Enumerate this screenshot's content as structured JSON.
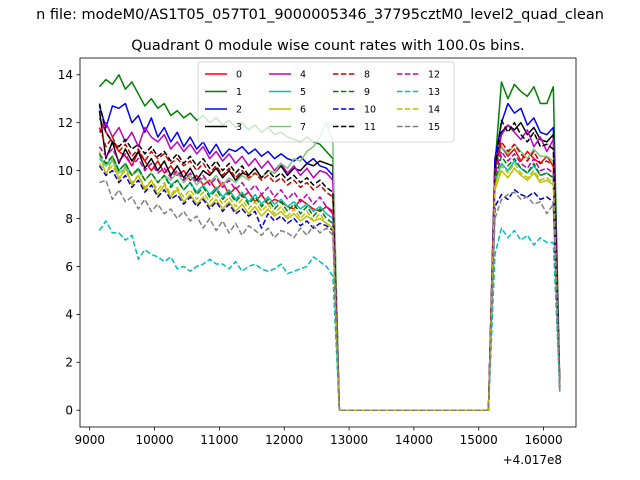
{
  "chart_data": {
    "type": "line",
    "suptitle": "n file: modeM0/AS1T05_057T01_9000005346_37795cztM0_level2_quad_clean",
    "title": "Quadrant 0 module wise count rates with 100.0s bins.",
    "xlabel": "",
    "ylabel": "",
    "x_offset_label": "+4.017e8",
    "xlim": [
      8850,
      16500
    ],
    "ylim": [
      -0.7,
      14.7
    ],
    "xticks": [
      9000,
      10000,
      11000,
      12000,
      13000,
      14000,
      15000,
      16000
    ],
    "yticks": [
      0,
      2,
      4,
      6,
      8,
      10,
      12,
      14
    ],
    "grid": false,
    "legend": {
      "placement": "upper-center",
      "columns": 4
    },
    "segments": [
      {
        "x_start": 9150,
        "x_end": 12750,
        "step": 100
      },
      {
        "x_start": 15250,
        "x_end": 16150,
        "step": 100
      }
    ],
    "gap_value": 0,
    "series": [
      {
        "name": "0",
        "color": "#ff0000",
        "dash": "solid",
        "values": [
          12.2,
          11.6,
          11.2,
          10.8,
          10.6,
          10.2,
          10.8,
          10.4,
          10.0,
          10.4,
          9.9,
          10.2,
          9.8,
          10.0,
          9.6,
          9.8,
          9.4,
          9.6,
          9.2,
          9.5,
          9.0,
          9.3,
          8.9,
          9.1,
          8.7,
          9.0,
          8.6,
          8.8,
          8.7,
          8.5,
          8.4,
          8.8,
          8.6,
          8.4,
          8.3,
          8.5,
          8.2
        ],
        "values2": [
          10.5,
          11.0,
          10.6,
          10.9,
          10.4,
          10.8,
          10.5,
          10.3,
          10.6,
          10.2
        ]
      },
      {
        "name": "1",
        "color": "#008000",
        "dash": "solid",
        "values": [
          13.5,
          13.8,
          13.6,
          14.0,
          13.4,
          13.7,
          13.2,
          12.7,
          13.0,
          12.6,
          12.8,
          12.3,
          12.5,
          12.2,
          12.4,
          12.1,
          12.3,
          12.0,
          12.2,
          11.9,
          12.1,
          11.8,
          12.0,
          11.7,
          11.9,
          11.6,
          11.8,
          11.5,
          11.6,
          11.4,
          11.3,
          11.2,
          11.4,
          11.2,
          11.1,
          10.8,
          10.5
        ],
        "values2": [
          10.2,
          13.7,
          13.0,
          13.6,
          13.3,
          13.1,
          13.5,
          12.8,
          12.8,
          13.5
        ]
      },
      {
        "name": "2",
        "color": "#0000ff",
        "dash": "solid",
        "values": [
          12.7,
          11.8,
          12.7,
          12.6,
          12.8,
          12.0,
          12.3,
          11.6,
          12.2,
          11.4,
          11.8,
          11.2,
          11.6,
          11.0,
          11.4,
          10.9,
          11.2,
          10.7,
          11.1,
          10.6,
          10.9,
          10.8,
          11.0,
          10.7,
          10.9,
          10.6,
          10.8,
          10.5,
          10.7,
          10.5,
          10.4,
          10.6,
          10.3,
          10.5,
          10.2,
          10.1,
          9.8
        ],
        "values2": [
          10.5,
          12.0,
          12.8,
          12.4,
          12.6,
          11.9,
          12.2,
          11.6,
          11.5,
          11.8
        ]
      },
      {
        "name": "3",
        "color": "#000000",
        "dash": "solid",
        "values": [
          12.5,
          10.5,
          11.2,
          10.3,
          10.9,
          10.4,
          10.8,
          10.1,
          10.5,
          10.0,
          10.4,
          9.8,
          10.2,
          9.7,
          10.1,
          9.6,
          10.0,
          9.8,
          10.1,
          9.7,
          10.0,
          9.6,
          9.9,
          9.8,
          10.1,
          9.7,
          10.0,
          9.9,
          10.2,
          9.8,
          10.1,
          10.0,
          10.3,
          10.2,
          10.4,
          10.3,
          10.2
        ],
        "values2": [
          10.0,
          11.6,
          11.9,
          11.7,
          12.0,
          11.5,
          11.8,
          11.3,
          11.2,
          11.5
        ]
      },
      {
        "name": "4",
        "color": "#bf00bf",
        "dash": "solid",
        "values": [
          11.6,
          12.0,
          11.4,
          11.8,
          11.2,
          11.6,
          11.0,
          11.8,
          11.4,
          11.2,
          11.5,
          10.9,
          11.2,
          10.8,
          11.1,
          10.7,
          11.0,
          10.5,
          10.8,
          10.4,
          10.7,
          10.3,
          10.6,
          10.2,
          10.5,
          10.1,
          10.4,
          10.0,
          10.3,
          9.9,
          10.2,
          9.8,
          10.1,
          9.7,
          10.0,
          9.9,
          9.6
        ],
        "values2": [
          10.0,
          11.5,
          11.9,
          11.6,
          11.3,
          11.7,
          11.0,
          11.4,
          10.8,
          11.3
        ]
      },
      {
        "name": "5",
        "color": "#00bfbf",
        "dash": "solid",
        "values": [
          10.5,
          10.2,
          10.6,
          10.0,
          10.3,
          9.8,
          10.1,
          9.6,
          9.9,
          9.5,
          9.8,
          9.4,
          9.6,
          9.2,
          9.5,
          9.1,
          9.4,
          9.0,
          9.3,
          8.9,
          9.2,
          8.8,
          9.1,
          8.7,
          9.0,
          8.6,
          8.9,
          8.6,
          8.8,
          8.5,
          8.7,
          8.4,
          8.6,
          8.3,
          8.5,
          8.2,
          8.0
        ],
        "values2": [
          9.5,
          10.3,
          10.0,
          10.4,
          10.1,
          9.9,
          10.2,
          9.8,
          9.9,
          9.7
        ]
      },
      {
        "name": "6",
        "color": "#bfbf00",
        "dash": "solid",
        "values": [
          10.8,
          9.8,
          10.5,
          9.6,
          10.2,
          9.4,
          9.8,
          9.2,
          9.6,
          9.0,
          9.4,
          8.9,
          9.2,
          8.7,
          9.0,
          8.6,
          8.9,
          8.5,
          8.8,
          8.4,
          8.7,
          8.3,
          8.6,
          8.2,
          8.5,
          8.1,
          8.4,
          8.1,
          8.3,
          8.0,
          8.2,
          7.9,
          8.1,
          7.9,
          8.0,
          7.8,
          7.6
        ],
        "values2": [
          9.2,
          10.0,
          9.7,
          10.1,
          9.8,
          9.6,
          9.9,
          9.5,
          9.6,
          9.4
        ]
      },
      {
        "name": "7",
        "color": "#80c080",
        "dash": "solid",
        "values": [
          10.6,
          10.2,
          10.4,
          9.9,
          10.1,
          9.8,
          10.0,
          9.6,
          9.9,
          9.5,
          9.8,
          9.6,
          9.9,
          9.5,
          9.8,
          9.4,
          9.7,
          9.5,
          9.8,
          9.4,
          9.7,
          9.5,
          9.8,
          9.6,
          9.9,
          9.7,
          10.0,
          9.9,
          10.3,
          10.1,
          10.5,
          10.4,
          10.8,
          11.0,
          11.4,
          12.0,
          11.2
        ],
        "values2": [
          10.0,
          11.0,
          10.7,
          11.1,
          10.8,
          10.5,
          10.9,
          10.6,
          10.6,
          10.4
        ]
      },
      {
        "name": "8",
        "color": "#cc0000",
        "dash": "dashed",
        "values": [
          11.8,
          11.0,
          11.4,
          10.8,
          11.1,
          10.6,
          10.9,
          10.4,
          10.8,
          10.5,
          10.7,
          10.3,
          10.5,
          10.2,
          10.4,
          10.0,
          10.3,
          9.9,
          10.2,
          9.8,
          10.1,
          9.7,
          10.0,
          9.7,
          9.9,
          9.6,
          9.8,
          9.5,
          9.7,
          9.4,
          9.6,
          9.3,
          9.5,
          9.2,
          9.4,
          9.1,
          8.9
        ],
        "values2": [
          10.0,
          11.2,
          10.8,
          11.1,
          10.7,
          10.4,
          10.8,
          10.3,
          10.4,
          10.2
        ]
      },
      {
        "name": "9",
        "color": "#008000",
        "dash": "dashed",
        "values": [
          10.7,
          10.3,
          10.6,
          10.0,
          10.3,
          9.8,
          10.1,
          9.6,
          9.9,
          9.5,
          9.8,
          9.3,
          9.6,
          9.2,
          9.5,
          9.0,
          9.3,
          8.9,
          9.2,
          8.8,
          9.1,
          8.7,
          9.0,
          8.6,
          8.9,
          8.5,
          8.8,
          8.4,
          8.7,
          8.3,
          8.6,
          8.2,
          8.5,
          8.1,
          8.4,
          8.0,
          7.8
        ],
        "values2": [
          9.6,
          10.6,
          10.2,
          10.5,
          10.1,
          9.9,
          10.3,
          9.8,
          9.9,
          9.7
        ]
      },
      {
        "name": "10",
        "color": "#0000cc",
        "dash": "dashed",
        "values": [
          10.2,
          9.8,
          10.0,
          9.5,
          9.8,
          9.3,
          9.6,
          9.1,
          9.4,
          8.9,
          9.2,
          8.8,
          9.0,
          8.6,
          8.9,
          8.5,
          8.8,
          8.4,
          8.7,
          8.3,
          8.6,
          8.2,
          8.4,
          8.1,
          8.3,
          7.6,
          8.2,
          7.9,
          8.1,
          7.8,
          8.0,
          7.7,
          7.9,
          7.6,
          7.8,
          7.7,
          7.5
        ],
        "values2": [
          8.5,
          9.0,
          8.8,
          9.2,
          9.0,
          8.9,
          9.1,
          8.8,
          8.9,
          8.7
        ]
      },
      {
        "name": "11",
        "color": "#000000",
        "dash": "dashed",
        "values": [
          12.8,
          11.6,
          11.2,
          11.0,
          11.3,
          10.9,
          11.1,
          10.7,
          11.0,
          10.6,
          10.8,
          10.4,
          10.7,
          10.3,
          10.6,
          10.2,
          10.5,
          10.1,
          10.4,
          10.0,
          10.3,
          9.9,
          10.2,
          9.8,
          10.1,
          9.7,
          10.0,
          9.7,
          9.9,
          9.6,
          9.8,
          9.5,
          9.7,
          9.4,
          9.6,
          9.3,
          9.1
        ],
        "values2": [
          10.0,
          12.1,
          11.6,
          12.0,
          11.5,
          11.2,
          11.6,
          11.0,
          11.1,
          10.9
        ]
      },
      {
        "name": "12",
        "color": "#bf00bf",
        "dash": "dashed",
        "values": [
          11.0,
          10.6,
          10.9,
          10.4,
          10.7,
          10.2,
          10.5,
          10.0,
          10.3,
          9.9,
          10.1,
          9.7,
          10.0,
          9.6,
          9.9,
          9.5,
          9.8,
          9.4,
          9.7,
          9.3,
          9.6,
          9.2,
          9.5,
          9.1,
          9.4,
          9.0,
          9.3,
          8.9,
          9.2,
          8.8,
          9.1,
          8.7,
          9.0,
          8.6,
          8.9,
          8.5,
          8.3
        ],
        "values2": [
          9.8,
          10.8,
          10.4,
          10.7,
          10.3,
          10.1,
          10.5,
          10.0,
          10.1,
          9.9
        ]
      },
      {
        "name": "13",
        "color": "#00bfbf",
        "dash": "dashed",
        "values": [
          7.5,
          7.9,
          7.4,
          7.4,
          7.1,
          7.3,
          6.3,
          6.7,
          6.5,
          6.4,
          6.2,
          6.4,
          5.9,
          6.0,
          5.8,
          6.0,
          6.1,
          6.3,
          6.1,
          6.1,
          5.9,
          6.2,
          5.8,
          6.0,
          6.1,
          5.9,
          5.8,
          5.9,
          6.1,
          5.7,
          5.8,
          5.9,
          6.0,
          6.4,
          6.2,
          6.0,
          5.6
        ],
        "values2": [
          6.5,
          7.6,
          7.2,
          7.5,
          7.1,
          7.3,
          6.9,
          7.2,
          7.0,
          7.0
        ]
      },
      {
        "name": "14",
        "color": "#bfbf00",
        "dash": "dashed",
        "values": [
          10.3,
          9.9,
          10.2,
          9.7,
          10.0,
          9.5,
          9.8,
          9.3,
          9.6,
          9.2,
          9.5,
          9.0,
          9.3,
          8.9,
          9.2,
          8.8,
          9.1,
          8.7,
          9.0,
          8.6,
          8.9,
          8.5,
          8.8,
          8.4,
          8.7,
          8.3,
          8.6,
          8.2,
          8.5,
          8.1,
          8.4,
          8.0,
          8.3,
          7.9,
          8.2,
          7.8,
          7.6
        ],
        "values2": [
          9.4,
          10.2,
          9.9,
          10.3,
          9.9,
          9.7,
          10.0,
          9.6,
          9.7,
          9.5
        ]
      },
      {
        "name": "15",
        "color": "#808080",
        "dash": "dashed",
        "values": [
          9.5,
          9.6,
          8.8,
          9.2,
          8.7,
          8.9,
          8.4,
          8.8,
          8.3,
          8.6,
          8.2,
          8.4,
          8.0,
          8.3,
          7.9,
          8.1,
          7.6,
          8.0,
          7.5,
          7.9,
          7.4,
          7.8,
          7.3,
          7.7,
          7.5,
          7.3,
          7.6,
          7.2,
          7.5,
          7.4,
          7.2,
          7.6,
          7.3,
          7.7,
          7.4,
          7.6,
          7.3
        ],
        "values2": [
          8.0,
          8.8,
          9.0,
          9.1,
          8.8,
          8.9,
          8.6,
          8.7,
          8.2,
          8.6
        ]
      }
    ]
  }
}
